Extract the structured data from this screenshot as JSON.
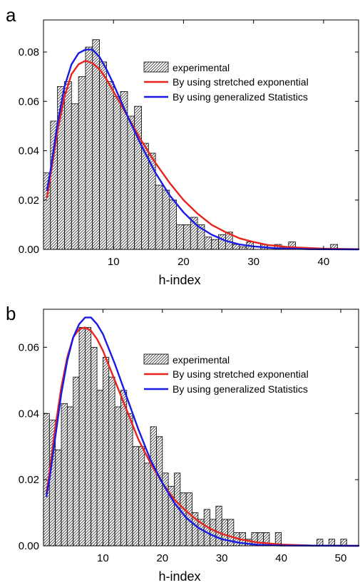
{
  "chart_data": [
    {
      "type": "bar",
      "panel_label": "a",
      "xlabel": "h-index",
      "ylabel": "",
      "xlim": [
        0,
        45
      ],
      "ylim": [
        0,
        0.093
      ],
      "xticks": [
        10,
        20,
        30,
        40
      ],
      "yticks": [
        0.0,
        0.02,
        0.04,
        0.06,
        0.08
      ],
      "ytick_labels": [
        "0.00",
        "0.02",
        "0.04",
        "0.06",
        "0.08"
      ],
      "bins": {
        "start": 0,
        "width": 1,
        "values": [
          0.031,
          0.052,
          0.066,
          0.068,
          0.059,
          0.07,
          0.082,
          0.085,
          0.076,
          0.068,
          0.062,
          0.064,
          0.054,
          0.058,
          0.043,
          0.039,
          0.026,
          0.024,
          0.02,
          0.01,
          0.01,
          0.013,
          0.01,
          0.005,
          0.004,
          0.006,
          0.007,
          0.002,
          0.001,
          0.003,
          0.0,
          0.002,
          0.0,
          0.002,
          0.001,
          0.003,
          0.0,
          0.0,
          0.0,
          0.0,
          0.0,
          0.002,
          0.0,
          0.0,
          0.0,
          0.001
        ]
      },
      "series": [
        {
          "name": "By using stretched exponential",
          "color": "#e8231e",
          "points": [
            [
              0.5,
              0.021
            ],
            [
              1,
              0.03
            ],
            [
              2,
              0.048
            ],
            [
              3,
              0.062
            ],
            [
              4,
              0.071
            ],
            [
              5,
              0.075
            ],
            [
              6,
              0.0765
            ],
            [
              7,
              0.0755
            ],
            [
              8,
              0.073
            ],
            [
              9,
              0.069
            ],
            [
              10,
              0.064
            ],
            [
              12,
              0.054
            ],
            [
              14,
              0.044
            ],
            [
              16,
              0.035
            ],
            [
              18,
              0.027
            ],
            [
              20,
              0.02
            ],
            [
              22,
              0.0145
            ],
            [
              24,
              0.01
            ],
            [
              26,
              0.007
            ],
            [
              28,
              0.0045
            ],
            [
              30,
              0.003
            ],
            [
              32,
              0.0018
            ],
            [
              35,
              0.0009
            ],
            [
              40,
              0.0003
            ],
            [
              45,
              0.0001
            ]
          ]
        },
        {
          "name": "By using generalized Statistics",
          "color": "#1a1ae6",
          "points": [
            [
              0.5,
              0.024
            ],
            [
              1,
              0.032
            ],
            [
              2,
              0.051
            ],
            [
              3,
              0.066
            ],
            [
              4,
              0.075
            ],
            [
              5,
              0.0795
            ],
            [
              6,
              0.081
            ],
            [
              7,
              0.081
            ],
            [
              8,
              0.078
            ],
            [
              9,
              0.073
            ],
            [
              10,
              0.067
            ],
            [
              12,
              0.054
            ],
            [
              14,
              0.042
            ],
            [
              16,
              0.031
            ],
            [
              18,
              0.022
            ],
            [
              20,
              0.015
            ],
            [
              22,
              0.0095
            ],
            [
              24,
              0.006
            ],
            [
              26,
              0.0035
            ],
            [
              28,
              0.002
            ],
            [
              30,
              0.0012
            ],
            [
              33,
              0.0005
            ],
            [
              38,
              0.0001
            ],
            [
              45,
              0.0
            ]
          ]
        }
      ],
      "legend": {
        "position": "top-right",
        "entries": [
          "experimental",
          "By using stretched exponential",
          "By using generalized Statistics"
        ]
      }
    },
    {
      "type": "bar",
      "panel_label": "b",
      "xlabel": "h-index",
      "ylabel": "",
      "xlim": [
        0,
        53
      ],
      "ylim": [
        0,
        0.0715
      ],
      "xticks": [
        10,
        20,
        30,
        40,
        50
      ],
      "yticks": [
        0.0,
        0.02,
        0.04,
        0.06
      ],
      "ytick_labels": [
        "0.00",
        "0.02",
        "0.04",
        "0.06"
      ],
      "bins": {
        "start": 0,
        "width": 1,
        "values": [
          0.04,
          0.038,
          0.029,
          0.043,
          0.042,
          0.051,
          0.066,
          0.066,
          0.06,
          0.047,
          0.057,
          0.051,
          0.042,
          0.047,
          0.04,
          0.03,
          0.03,
          0.025,
          0.036,
          0.033,
          0.022,
          0.018,
          0.022,
          0.016,
          0.016,
          0.01,
          0.008,
          0.011,
          0.008,
          0.012,
          0.008,
          0.008,
          0.004,
          0.004,
          0.002,
          0.004,
          0.004,
          0.004,
          0.0,
          0.004,
          0.0,
          0.0,
          0.0,
          0.0,
          0.0,
          0.0,
          0.002,
          0.0,
          0.002,
          0.0,
          0.002,
          0.0,
          0.0
        ]
      },
      "series": [
        {
          "name": "By using stretched exponential",
          "color": "#e8231e",
          "points": [
            [
              0.5,
              0.016
            ],
            [
              1,
              0.022
            ],
            [
              2,
              0.036
            ],
            [
              3,
              0.048
            ],
            [
              4,
              0.057
            ],
            [
              5,
              0.063
            ],
            [
              6,
              0.0655
            ],
            [
              7,
              0.066
            ],
            [
              8,
              0.065
            ],
            [
              9,
              0.0625
            ],
            [
              10,
              0.059
            ],
            [
              12,
              0.05
            ],
            [
              14,
              0.041
            ],
            [
              16,
              0.032
            ],
            [
              18,
              0.025
            ],
            [
              20,
              0.019
            ],
            [
              22,
              0.014
            ],
            [
              24,
              0.0105
            ],
            [
              26,
              0.0075
            ],
            [
              28,
              0.0052
            ],
            [
              30,
              0.0036
            ],
            [
              33,
              0.002
            ],
            [
              36,
              0.001
            ],
            [
              40,
              0.0004
            ],
            [
              45,
              0.0001
            ],
            [
              53,
              0.0
            ]
          ]
        },
        {
          "name": "By using generalized Statistics",
          "color": "#1a1ae6",
          "points": [
            [
              0.5,
              0.015
            ],
            [
              1,
              0.02
            ],
            [
              2,
              0.033
            ],
            [
              3,
              0.046
            ],
            [
              4,
              0.056
            ],
            [
              5,
              0.063
            ],
            [
              6,
              0.067
            ],
            [
              7,
              0.069
            ],
            [
              8,
              0.069
            ],
            [
              9,
              0.067
            ],
            [
              10,
              0.064
            ],
            [
              12,
              0.055
            ],
            [
              14,
              0.045
            ],
            [
              16,
              0.035
            ],
            [
              18,
              0.026
            ],
            [
              20,
              0.019
            ],
            [
              22,
              0.013
            ],
            [
              24,
              0.0085
            ],
            [
              26,
              0.0055
            ],
            [
              28,
              0.0035
            ],
            [
              30,
              0.002
            ],
            [
              33,
              0.0009
            ],
            [
              36,
              0.0003
            ],
            [
              40,
              0.0001
            ],
            [
              53,
              0.0
            ]
          ]
        }
      ],
      "legend": {
        "position": "top-right",
        "entries": [
          "experimental",
          "By using stretched exponential",
          "By using generalized Statistics"
        ]
      }
    }
  ]
}
